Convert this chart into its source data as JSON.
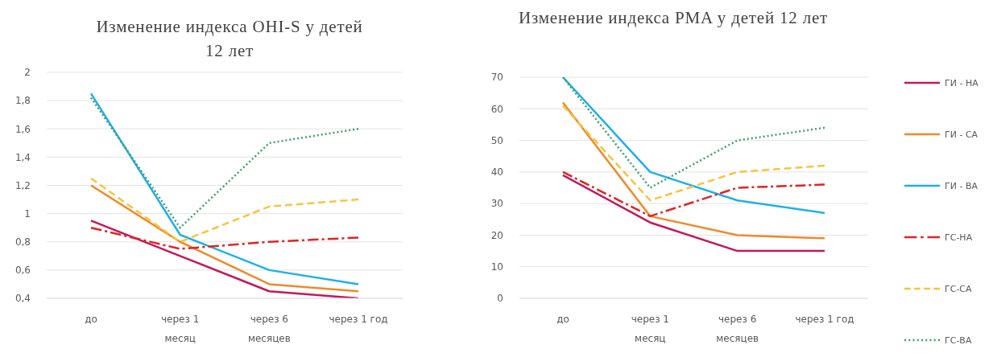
{
  "chart_data": [
    {
      "type": "line",
      "title": "Изменение индекса OHI-S у детей 12 лет",
      "categories": [
        "до",
        "через 1 месяц",
        "через 6 месяцев",
        "через 1 год"
      ],
      "series": [
        {
          "color": "#c2185b",
          "line_style": "solid",
          "values": [
            0.95,
            0.7,
            0.45,
            0.4
          ]
        },
        {
          "color": "#f0892a",
          "line_style": "solid",
          "values": [
            1.2,
            0.8,
            0.5,
            0.45
          ]
        },
        {
          "color": "#1fb0e6",
          "line_style": "solid",
          "values": [
            1.85,
            0.85,
            0.6,
            0.5
          ]
        },
        {
          "color": "#e02424",
          "line_style": "dashdot",
          "values": [
            0.9,
            0.75,
            0.8,
            0.83
          ]
        },
        {
          "color": "#f7c43c",
          "line_style": "dashed",
          "values": [
            1.25,
            0.8,
            1.05,
            1.1
          ]
        },
        {
          "color": "#3f9f6f",
          "line_style": "dotted",
          "values": [
            1.82,
            0.9,
            1.5,
            1.6
          ]
        }
      ],
      "ylim": [
        0.4,
        2
      ],
      "yticks": [
        {
          "value": 0.4,
          "label": "0,4"
        },
        {
          "value": 0.6,
          "label": "0,6"
        },
        {
          "value": 0.8,
          "label": "0,8"
        },
        1,
        {
          "value": 1.2,
          "label": "1,2"
        },
        {
          "value": 1.4,
          "label": "1,4"
        },
        {
          "value": 1.6,
          "label": "1,6"
        },
        {
          "value": 1.8,
          "label": "1,8"
        },
        2
      ],
      "grid": "y",
      "marker": "none",
      "legend": false
    },
    {
      "type": "line",
      "title": "Изменение индекса PMA у детей 12 лет",
      "categories": [
        "до",
        "через 1 месяц",
        "через 6 месяцев",
        "через 1 год"
      ],
      "series": [
        {
          "name": "ГИ - НА",
          "color": "#c2185b",
          "line_style": "solid",
          "values": [
            39,
            24,
            15,
            15
          ]
        },
        {
          "name": "ГИ - СА",
          "color": "#f0892a",
          "line_style": "solid",
          "values": [
            62,
            26,
            20,
            19
          ]
        },
        {
          "name": "ГИ - ВА",
          "color": "#1fb0e6",
          "line_style": "solid",
          "values": [
            70,
            40,
            31,
            27
          ]
        },
        {
          "name": "ГС-НА",
          "color": "#e02424",
          "line_style": "dashdot",
          "values": [
            40,
            26,
            35,
            36
          ]
        },
        {
          "name": "ГС-СА",
          "color": "#f7c43c",
          "line_style": "dashed",
          "values": [
            61,
            31,
            40,
            42
          ]
        },
        {
          "name": "ГС-ВА",
          "color": "#3f9f6f",
          "line_style": "dotted",
          "values": [
            70,
            35,
            50,
            54
          ]
        }
      ],
      "ylim": [
        0,
        70
      ],
      "yticks": [
        0,
        10,
        20,
        30,
        40,
        50,
        60,
        70
      ],
      "grid": "y",
      "marker": "none",
      "legend": "right"
    }
  ]
}
